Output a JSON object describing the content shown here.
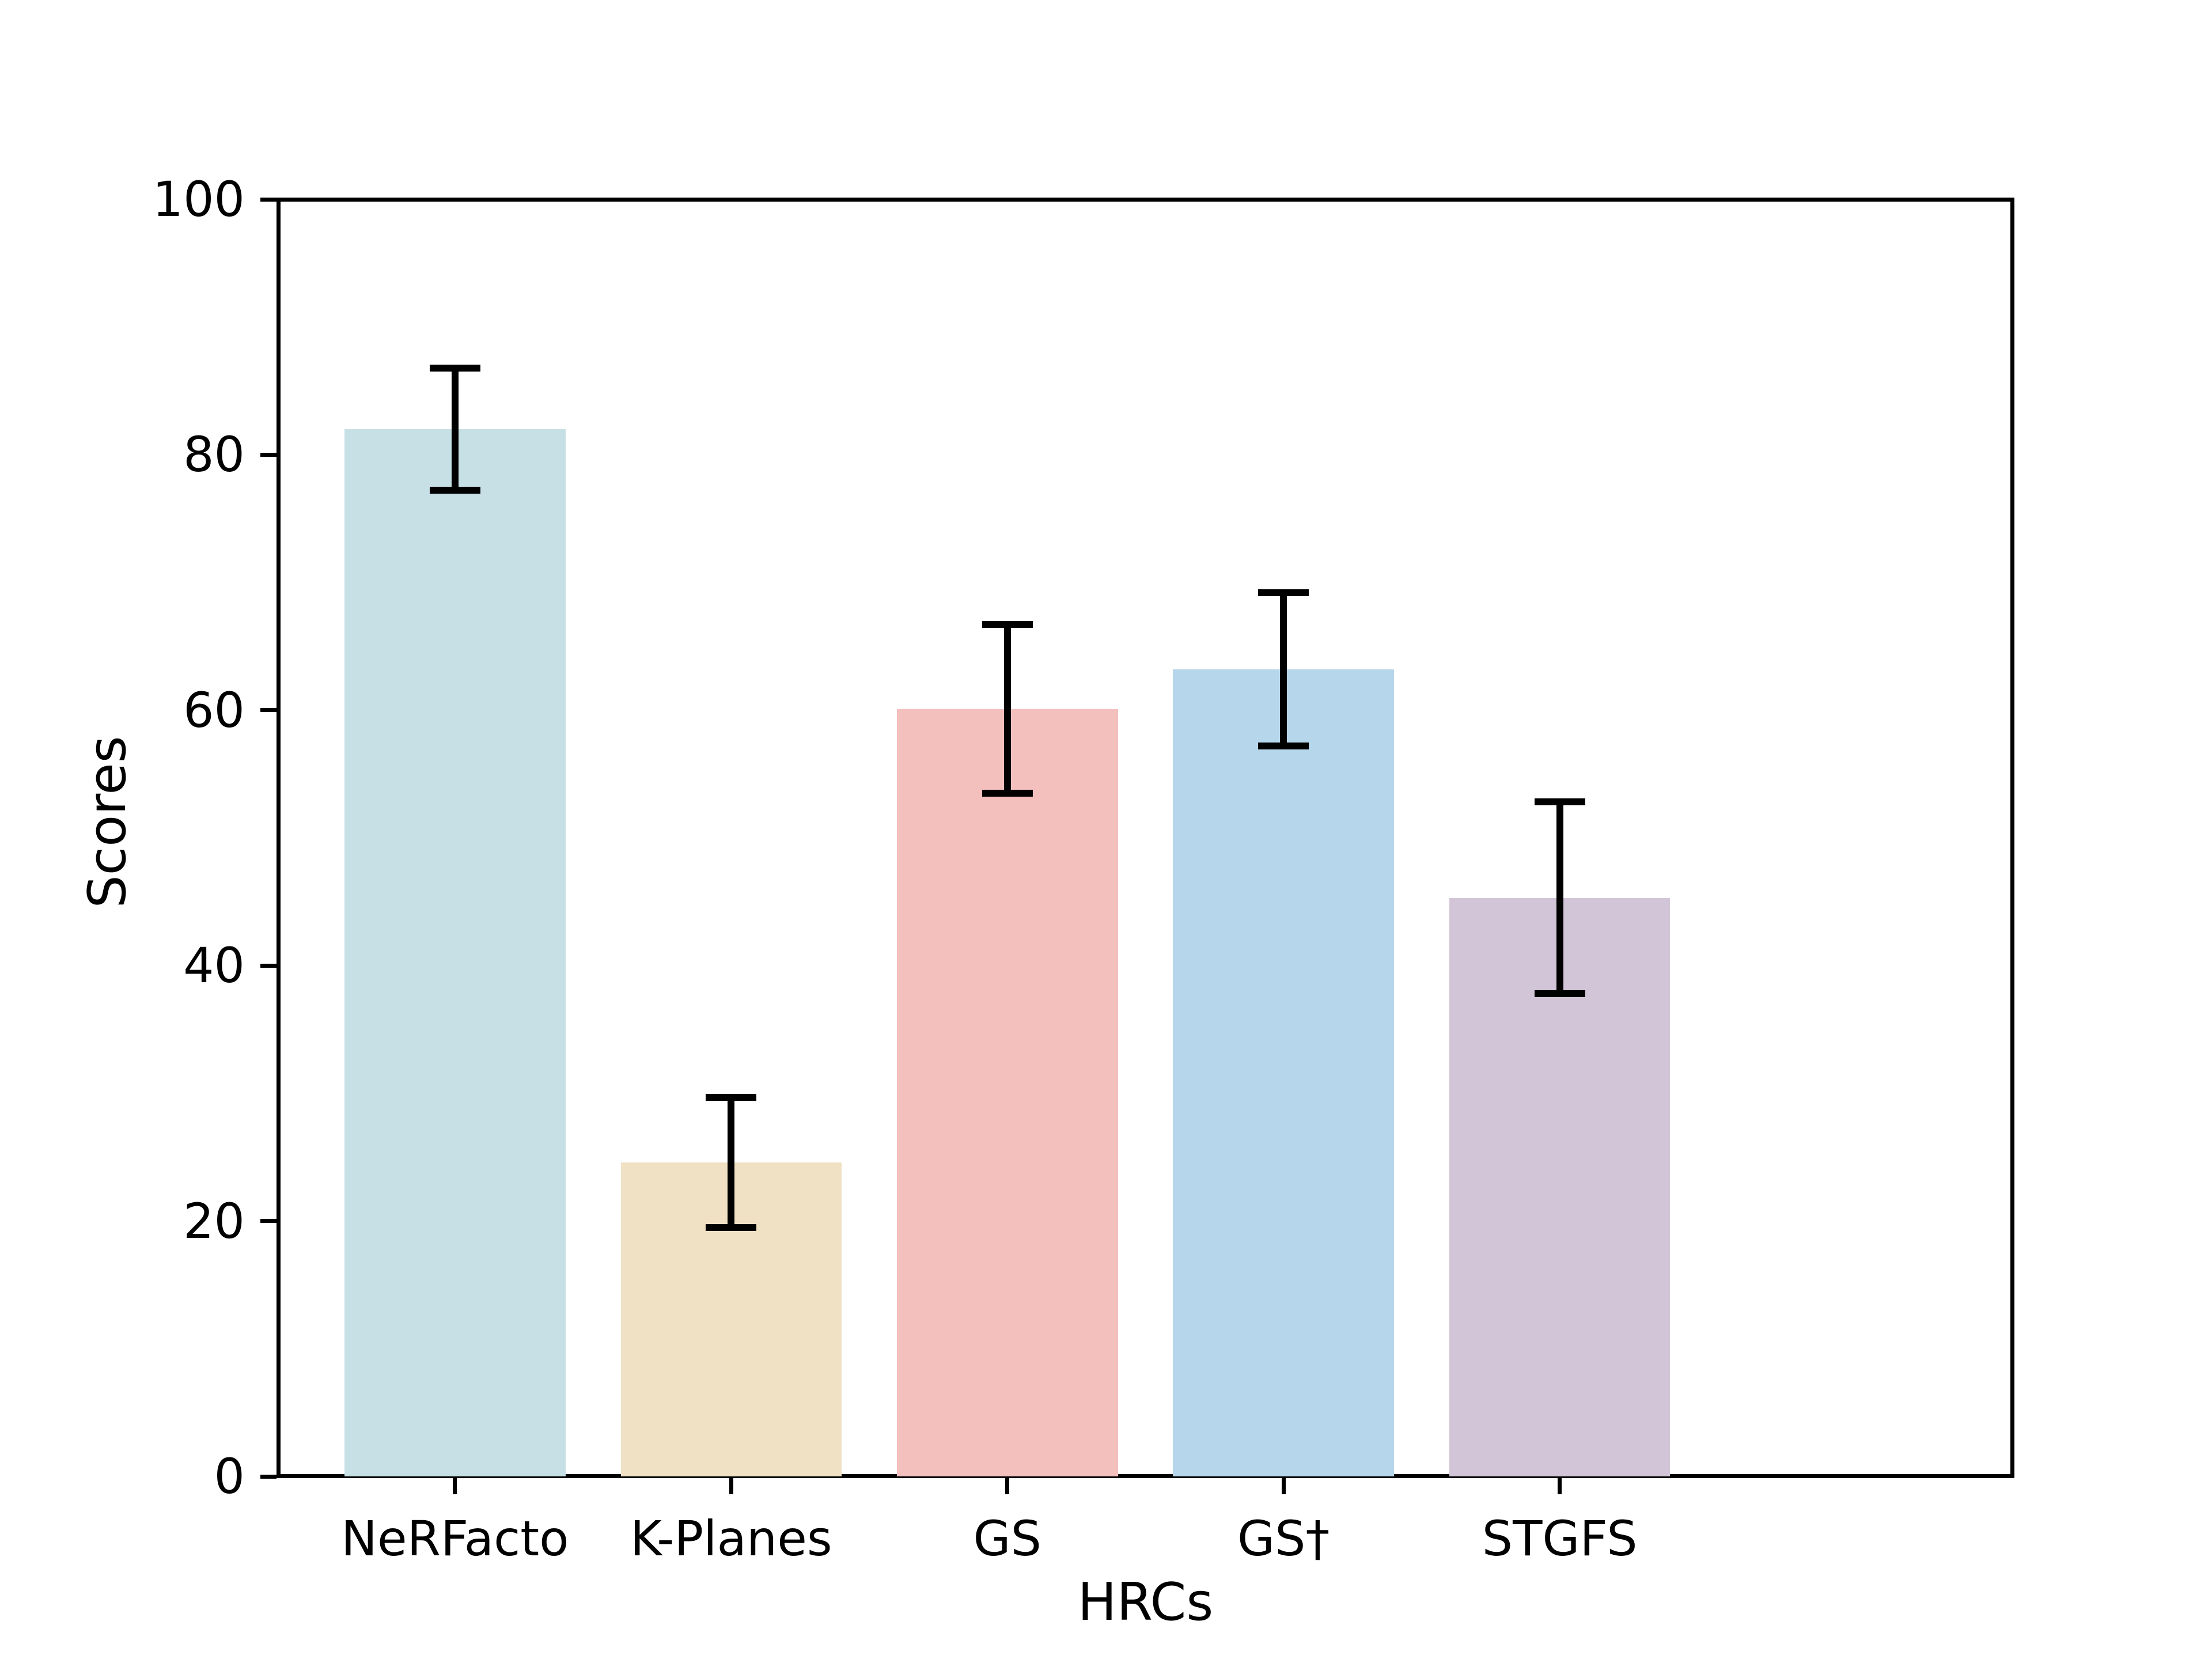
{
  "chart_data": {
    "type": "bar",
    "title": "",
    "xlabel": "HRCs",
    "ylabel": "Scores",
    "categories": [
      "NeRFacto",
      "K-Planes",
      "GS",
      "GS†",
      "STGFS"
    ],
    "values": [
      82.0,
      24.6,
      60.1,
      63.2,
      45.3
    ],
    "errors": [
      4.8,
      5.1,
      6.6,
      6.0,
      7.5
    ],
    "bar_colors": [
      "#C7E0E6",
      "#F0E0C4",
      "#F3C0BE",
      "#B5D6EB",
      "#D3C5D8"
    ],
    "error_bar_color": "#000000",
    "axis_color": "#000000",
    "background_color": "#FFFFFF",
    "ylim": [
      0,
      100
    ],
    "yticks": [
      0,
      20,
      40,
      60,
      80,
      100
    ],
    "grid": false,
    "legend": null,
    "bar_width_fraction": 0.8,
    "x_axis_margin_units": 0.64
  }
}
